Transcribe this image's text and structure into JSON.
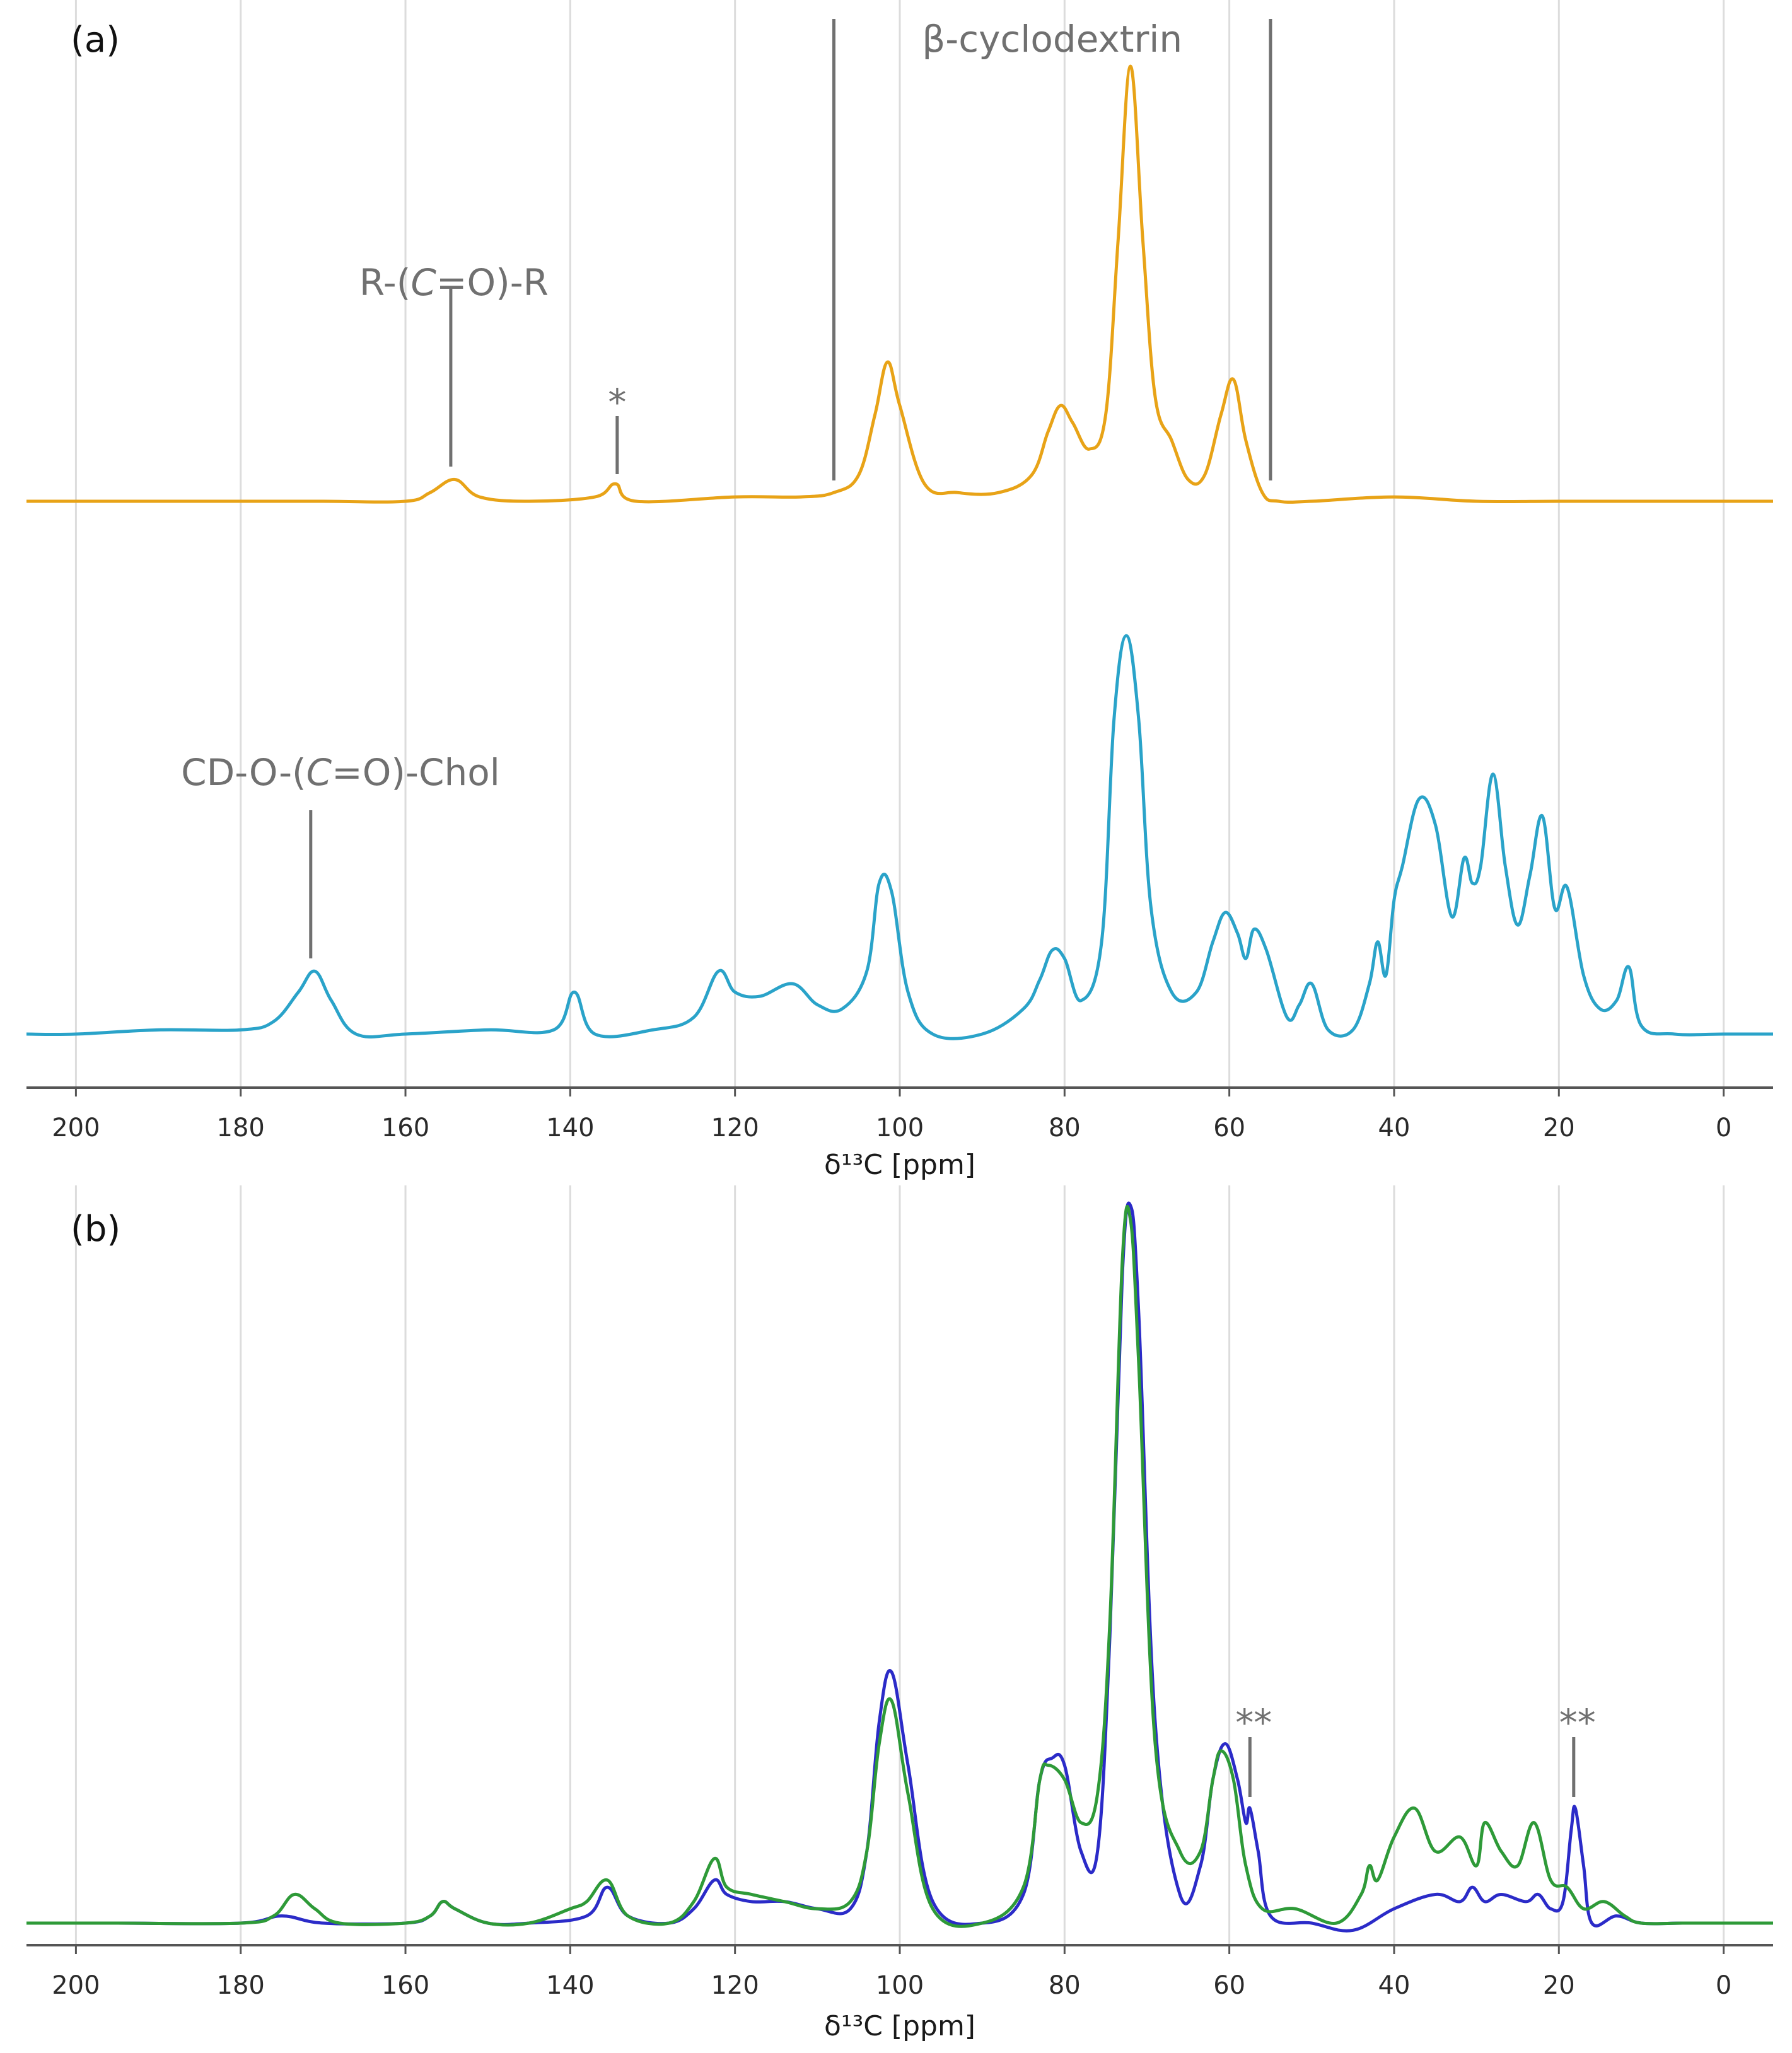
{
  "chart_data": [
    {
      "type": "line",
      "panel_label": "(a)",
      "xlabel": "δ¹³C [ppm]",
      "xlim": [
        206,
        -6
      ],
      "x_reversed": true,
      "xticks": [
        200,
        180,
        160,
        140,
        120,
        100,
        80,
        60,
        40,
        20,
        0
      ],
      "ylabel": "",
      "grid": "vertical",
      "series": [
        {
          "color": "#E8A317",
          "x": [
            206,
            200,
            190,
            180,
            170,
            160,
            157,
            154,
            151,
            145,
            137,
            134.5,
            132,
            120,
            112,
            108,
            105,
            103,
            101.5,
            100,
            97,
            93,
            88,
            84,
            82,
            80.5,
            79,
            77,
            75,
            73.5,
            72,
            70.5,
            69,
            67,
            65,
            63,
            61,
            59.5,
            58,
            56,
            54,
            50,
            40,
            30,
            20,
            10,
            0,
            -6
          ],
          "values": [
            0.0,
            0.0,
            0.0,
            0.0,
            0.0,
            0.0,
            0.02,
            0.05,
            0.01,
            0.0,
            0.01,
            0.04,
            0.0,
            0.01,
            0.01,
            0.02,
            0.06,
            0.2,
            0.32,
            0.22,
            0.04,
            0.02,
            0.02,
            0.06,
            0.16,
            0.22,
            0.18,
            0.12,
            0.2,
            0.6,
            1.0,
            0.6,
            0.24,
            0.14,
            0.05,
            0.06,
            0.2,
            0.28,
            0.14,
            0.02,
            0.0,
            0.0,
            0.01,
            0.0,
            0.0,
            0.0,
            0.0,
            0.0
          ]
        },
        {
          "color": "#2AA3C9",
          "x": [
            206,
            200,
            190,
            180,
            176,
            173,
            171,
            169,
            166,
            160,
            150,
            142,
            139.5,
            137,
            130,
            125,
            122,
            120,
            117,
            113,
            110,
            107,
            104,
            102.5,
            101,
            99,
            96,
            90,
            85,
            83,
            81.5,
            80,
            78,
            75.5,
            74,
            72.5,
            71,
            69.5,
            67,
            64,
            62,
            60.5,
            59,
            58,
            57,
            55.5,
            53,
            51.5,
            50,
            48,
            45,
            43,
            42,
            41,
            40,
            39,
            37,
            35,
            33,
            31.5,
            30.5,
            29.5,
            28,
            26.5,
            25,
            23.5,
            22,
            20.5,
            19,
            17,
            15,
            13,
            11.5,
            10,
            6,
            0,
            -6
          ],
          "values": [
            0.0,
            0.0,
            0.01,
            0.01,
            0.03,
            0.1,
            0.15,
            0.08,
            0.0,
            0.0,
            0.01,
            0.01,
            0.1,
            0.0,
            0.01,
            0.04,
            0.15,
            0.1,
            0.09,
            0.12,
            0.07,
            0.06,
            0.15,
            0.36,
            0.34,
            0.1,
            0.0,
            0.0,
            0.06,
            0.13,
            0.2,
            0.18,
            0.08,
            0.22,
            0.75,
            0.95,
            0.75,
            0.3,
            0.1,
            0.1,
            0.22,
            0.29,
            0.24,
            0.18,
            0.25,
            0.2,
            0.04,
            0.07,
            0.12,
            0.01,
            0.01,
            0.12,
            0.22,
            0.14,
            0.32,
            0.4,
            0.56,
            0.5,
            0.28,
            0.42,
            0.36,
            0.4,
            0.62,
            0.4,
            0.26,
            0.38,
            0.52,
            0.3,
            0.35,
            0.14,
            0.06,
            0.08,
            0.16,
            0.02,
            0.0,
            0.0,
            0.0
          ]
        }
      ],
      "annotations": [
        {
          "text": "β-cyclodextrin",
          "x_from": 108,
          "x_to": 55
        },
        {
          "text": "R-(",
          "italic": "C",
          "text_after": "=O)-R",
          "x": 154.5
        },
        {
          "text": "*",
          "x": 134.3
        },
        {
          "text": "CD-O-(",
          "italic": "C",
          "text_after": "=O)-Chol",
          "x": 171.5
        }
      ]
    },
    {
      "type": "line",
      "panel_label": "(b)",
      "xlabel": "δ¹³C [ppm]",
      "xlim": [
        206,
        -6
      ],
      "x_reversed": true,
      "xticks": [
        200,
        180,
        160,
        140,
        120,
        100,
        80,
        60,
        40,
        20,
        0
      ],
      "ylabel": "",
      "grid": "vertical",
      "series": [
        {
          "color": "#2B2BC8",
          "x": [
            206,
            195,
            180,
            175,
            170,
            160,
            157,
            155.5,
            154,
            150,
            145,
            138,
            135.5,
            133,
            128,
            125,
            122.5,
            121,
            118,
            114,
            110,
            106,
            104,
            102.5,
            101,
            99,
            96,
            90,
            85,
            83,
            81.5,
            80,
            78,
            76,
            74.5,
            73,
            72,
            71,
            69,
            66,
            63.5,
            62,
            60.5,
            59,
            58,
            57.5,
            56.5,
            55,
            50,
            45,
            40,
            35,
            32,
            30.5,
            29,
            27,
            24,
            22.5,
            21,
            19.5,
            18.5,
            18,
            17,
            16,
            13,
            10,
            5,
            0,
            -6
          ],
          "values": [
            0.0,
            0.0,
            0.0,
            0.01,
            0.0,
            0.0,
            0.01,
            0.03,
            0.02,
            0.0,
            0.0,
            0.01,
            0.05,
            0.01,
            0.0,
            0.02,
            0.06,
            0.04,
            0.03,
            0.03,
            0.02,
            0.02,
            0.1,
            0.28,
            0.35,
            0.22,
            0.03,
            0.0,
            0.04,
            0.2,
            0.23,
            0.22,
            0.1,
            0.1,
            0.4,
            0.9,
            1.0,
            0.85,
            0.28,
            0.04,
            0.08,
            0.2,
            0.25,
            0.2,
            0.14,
            0.16,
            0.1,
            0.01,
            0.0,
            -0.01,
            0.02,
            0.04,
            0.03,
            0.05,
            0.03,
            0.04,
            0.03,
            0.04,
            0.02,
            0.03,
            0.13,
            0.16,
            0.08,
            0.0,
            0.01,
            0.0,
            0.0,
            0.0,
            0.0
          ]
        },
        {
          "color": "#2E9A38",
          "x": [
            206,
            195,
            180,
            176,
            173.5,
            171,
            168,
            160,
            157,
            155.5,
            154,
            150,
            145,
            140,
            138,
            135.5,
            133,
            128,
            125,
            122.5,
            121,
            118,
            114,
            110,
            106,
            104,
            102.5,
            101,
            99,
            96,
            90,
            85,
            83,
            82,
            80,
            78,
            76,
            74.5,
            73,
            72,
            71,
            69,
            66,
            63.5,
            62,
            61,
            59.5,
            58,
            56,
            52,
            47,
            44,
            43,
            42,
            40,
            37.5,
            35,
            32,
            30,
            29,
            27,
            25,
            23,
            21,
            19,
            17,
            14.5,
            12,
            10,
            5,
            0,
            -6
          ],
          "values": [
            0.0,
            0.0,
            0.0,
            0.01,
            0.04,
            0.02,
            0.0,
            0.0,
            0.01,
            0.03,
            0.02,
            0.0,
            0.0,
            0.02,
            0.03,
            0.06,
            0.01,
            0.0,
            0.03,
            0.09,
            0.05,
            0.04,
            0.03,
            0.02,
            0.03,
            0.1,
            0.25,
            0.31,
            0.18,
            0.02,
            0.0,
            0.05,
            0.2,
            0.22,
            0.2,
            0.14,
            0.18,
            0.42,
            0.92,
            0.98,
            0.78,
            0.25,
            0.1,
            0.1,
            0.2,
            0.24,
            0.2,
            0.08,
            0.02,
            0.02,
            0.0,
            0.04,
            0.08,
            0.06,
            0.12,
            0.16,
            0.1,
            0.12,
            0.08,
            0.14,
            0.1,
            0.08,
            0.14,
            0.06,
            0.05,
            0.02,
            0.03,
            0.01,
            0.0,
            0.0,
            0.0,
            0.0
          ]
        }
      ],
      "annotations": [
        {
          "text": "**",
          "x": 57.5
        },
        {
          "text": "**",
          "x": 18.2
        }
      ]
    }
  ]
}
